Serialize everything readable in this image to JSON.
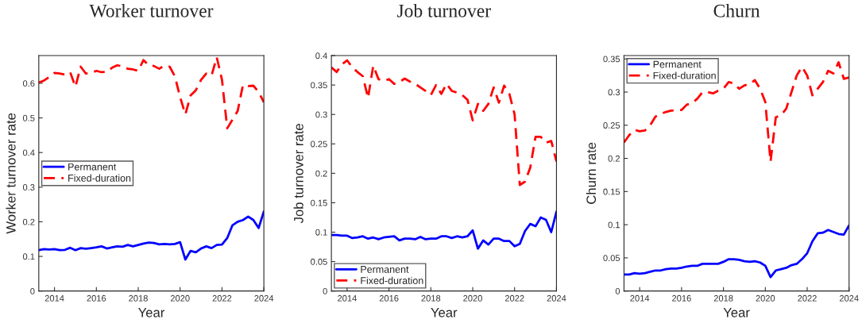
{
  "chart_data": [
    {
      "type": "line",
      "title": "Worker turnover",
      "xlabel": "Year",
      "ylabel": "Worker turnover rate",
      "x": [
        2013.25,
        2013.5,
        2013.75,
        2014,
        2014.25,
        2014.5,
        2014.75,
        2015,
        2015.25,
        2015.5,
        2015.75,
        2016,
        2016.25,
        2016.5,
        2016.75,
        2017,
        2017.25,
        2017.5,
        2017.75,
        2018,
        2018.25,
        2018.5,
        2018.75,
        2019,
        2019.25,
        2019.5,
        2019.75,
        2020,
        2020.25,
        2020.5,
        2020.75,
        2021,
        2021.25,
        2021.5,
        2021.75,
        2022,
        2022.25,
        2022.5,
        2022.75,
        2023,
        2023.25,
        2023.5,
        2023.75,
        2024
      ],
      "series": [
        {
          "name": "Permanent",
          "color": "#0000ff",
          "line_style": "solid",
          "values": [
            0.118,
            0.121,
            0.12,
            0.121,
            0.118,
            0.119,
            0.125,
            0.118,
            0.124,
            0.122,
            0.124,
            0.126,
            0.129,
            0.123,
            0.126,
            0.129,
            0.128,
            0.133,
            0.129,
            0.133,
            0.137,
            0.14,
            0.139,
            0.135,
            0.136,
            0.135,
            0.136,
            0.141,
            0.091,
            0.116,
            0.112,
            0.123,
            0.129,
            0.124,
            0.133,
            0.134,
            0.153,
            0.19,
            0.2,
            0.205,
            0.215,
            0.205,
            0.182,
            0.23
          ]
        },
        {
          "name": "Fixed-duration",
          "color": "#ff0000",
          "line_style": "dashed",
          "values": [
            0.602,
            0.608,
            0.618,
            0.63,
            0.628,
            0.625,
            0.632,
            0.59,
            0.648,
            0.628,
            0.63,
            0.636,
            0.632,
            0.633,
            0.645,
            0.652,
            0.649,
            0.642,
            0.64,
            0.636,
            0.667,
            0.652,
            0.65,
            0.642,
            0.651,
            0.648,
            0.62,
            0.56,
            0.51,
            0.565,
            0.58,
            0.61,
            0.628,
            0.622,
            0.675,
            0.61,
            0.47,
            0.495,
            0.52,
            0.595,
            0.592,
            0.593,
            0.575,
            0.545
          ]
        }
      ],
      "xlim": [
        2013.25,
        2024
      ],
      "xticks": [
        2014,
        2016,
        2018,
        2020,
        2022,
        2024
      ],
      "ylim": [
        0,
        0.68
      ],
      "yticks": [
        0,
        0.1,
        0.2,
        0.3,
        0.4,
        0.5,
        0.6
      ],
      "legend": "left",
      "grid": false
    },
    {
      "type": "line",
      "title": "Job turnover",
      "xlabel": "Year",
      "ylabel": "Job turnover rate",
      "x": [
        2013.25,
        2013.5,
        2013.75,
        2014,
        2014.25,
        2014.5,
        2014.75,
        2015,
        2015.25,
        2015.5,
        2015.75,
        2016,
        2016.25,
        2016.5,
        2016.75,
        2017,
        2017.25,
        2017.5,
        2017.75,
        2018,
        2018.25,
        2018.5,
        2018.75,
        2019,
        2019.25,
        2019.5,
        2019.75,
        2020,
        2020.25,
        2020.5,
        2020.75,
        2021,
        2021.25,
        2021.5,
        2021.75,
        2022,
        2022.25,
        2022.5,
        2022.75,
        2023,
        2023.25,
        2023.5,
        2023.75,
        2024
      ],
      "series": [
        {
          "name": "Permanent",
          "color": "#0000ff",
          "line_style": "solid",
          "values": [
            0.095,
            0.095,
            0.094,
            0.094,
            0.09,
            0.091,
            0.093,
            0.089,
            0.091,
            0.088,
            0.091,
            0.092,
            0.093,
            0.086,
            0.089,
            0.089,
            0.088,
            0.092,
            0.088,
            0.089,
            0.089,
            0.093,
            0.093,
            0.09,
            0.093,
            0.091,
            0.093,
            0.103,
            0.072,
            0.086,
            0.079,
            0.089,
            0.089,
            0.085,
            0.085,
            0.076,
            0.08,
            0.102,
            0.114,
            0.11,
            0.125,
            0.121,
            0.1,
            0.135
          ]
        },
        {
          "name": "Fixed-duration",
          "color": "#ff0000",
          "line_style": "dashed",
          "values": [
            0.38,
            0.372,
            0.385,
            0.392,
            0.38,
            0.372,
            0.365,
            0.328,
            0.383,
            0.36,
            0.357,
            0.36,
            0.352,
            0.355,
            0.361,
            0.356,
            0.352,
            0.346,
            0.34,
            0.333,
            0.35,
            0.335,
            0.352,
            0.34,
            0.337,
            0.333,
            0.325,
            0.29,
            0.318,
            0.306,
            0.318,
            0.346,
            0.32,
            0.349,
            0.335,
            0.3,
            0.18,
            0.186,
            0.21,
            0.262,
            0.262,
            0.252,
            0.255,
            0.22
          ]
        }
      ],
      "xlim": [
        2013.25,
        2024
      ],
      "xticks": [
        2014,
        2016,
        2018,
        2020,
        2022,
        2024
      ],
      "ylim": [
        0,
        0.4
      ],
      "yticks": [
        0,
        0.05,
        0.1,
        0.15,
        0.2,
        0.25,
        0.3,
        0.35,
        0.4
      ],
      "legend": "bottom left",
      "grid": false
    },
    {
      "type": "line",
      "title": "Churn",
      "xlabel": "Year",
      "ylabel": "Churn rate",
      "x": [
        2013.25,
        2013.5,
        2013.75,
        2014,
        2014.25,
        2014.5,
        2014.75,
        2015,
        2015.25,
        2015.5,
        2015.75,
        2016,
        2016.25,
        2016.5,
        2016.75,
        2017,
        2017.25,
        2017.5,
        2017.75,
        2018,
        2018.25,
        2018.5,
        2018.75,
        2019,
        2019.25,
        2019.5,
        2019.75,
        2020,
        2020.25,
        2020.5,
        2020.75,
        2021,
        2021.25,
        2021.5,
        2021.75,
        2022,
        2022.25,
        2022.5,
        2022.75,
        2023,
        2023.25,
        2023.5,
        2023.75,
        2024
      ],
      "series": [
        {
          "name": "Permanent",
          "color": "#0000ff",
          "line_style": "solid",
          "values": [
            0.025,
            0.025,
            0.027,
            0.026,
            0.027,
            0.029,
            0.031,
            0.031,
            0.033,
            0.034,
            0.034,
            0.035,
            0.037,
            0.038,
            0.038,
            0.041,
            0.041,
            0.041,
            0.041,
            0.044,
            0.048,
            0.048,
            0.047,
            0.045,
            0.044,
            0.045,
            0.043,
            0.038,
            0.021,
            0.031,
            0.033,
            0.035,
            0.039,
            0.041,
            0.048,
            0.057,
            0.075,
            0.087,
            0.088,
            0.092,
            0.089,
            0.086,
            0.085,
            0.099
          ]
        },
        {
          "name": "Fixed-duration",
          "color": "#ff0000",
          "line_style": "dashed",
          "values": [
            0.224,
            0.235,
            0.243,
            0.241,
            0.242,
            0.25,
            0.263,
            0.267,
            0.27,
            0.272,
            0.273,
            0.273,
            0.281,
            0.283,
            0.29,
            0.3,
            0.3,
            0.298,
            0.302,
            0.305,
            0.315,
            0.313,
            0.305,
            0.31,
            0.312,
            0.318,
            0.305,
            0.285,
            0.195,
            0.262,
            0.265,
            0.275,
            0.3,
            0.325,
            0.338,
            0.325,
            0.295,
            0.305,
            0.315,
            0.332,
            0.328,
            0.345,
            0.32,
            0.322
          ]
        }
      ],
      "xlim": [
        2013.25,
        2024
      ],
      "xticks": [
        2014,
        2016,
        2018,
        2020,
        2022,
        2024
      ],
      "ylim": [
        0,
        0.355
      ],
      "yticks": [
        0,
        0.05,
        0.1,
        0.15,
        0.2,
        0.25,
        0.3,
        0.35
      ],
      "legend": "top left",
      "grid": false
    }
  ]
}
